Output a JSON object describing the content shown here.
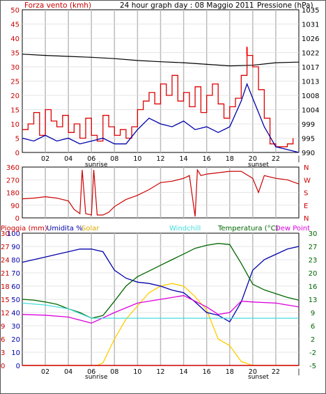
{
  "header": {
    "left_label": "Forza vento (kmh)",
    "center_title": "24 hour graph day : 08 Maggio 2011",
    "right_label": "Pressione (hPa)"
  },
  "colors": {
    "wind": "#dd0000",
    "gust": "#ff0000",
    "avg_wind": "#0000aa",
    "pressure": "#000000",
    "direction": "#cc0000",
    "humidity": "#0000aa",
    "solar": "#ffcc00",
    "windchill": "#44dddd",
    "temperature": "#006600",
    "dewpoint": "#dd00dd",
    "rain": "#cc0000",
    "grid": "#bbbbbb"
  },
  "x_axis": {
    "ticks": [
      "02",
      "04",
      "06",
      "08",
      "10",
      "12",
      "14",
      "16",
      "18",
      "20",
      "22",
      "|"
    ],
    "sunrise_label": "sunrise",
    "sunset_label": "sunset"
  },
  "chart_data": [
    {
      "type": "line",
      "panel": "wind-pressure",
      "left_axis_ticks": [
        "50",
        "45",
        "40",
        "35",
        "30",
        "25",
        "20",
        "15",
        "10",
        "5",
        "0"
      ],
      "right_axis_ticks": [
        "1035",
        "1031",
        "1026",
        "1022",
        "1017",
        "1013",
        "1008",
        "1004",
        "999",
        "995",
        "990"
      ],
      "ylim_left": [
        0,
        50
      ],
      "ylim_right": [
        990,
        1035
      ],
      "x_hours": [
        0,
        24
      ],
      "series": [
        {
          "name": "Forza vento (kmh)",
          "x": [
            0,
            0.5,
            1,
            1.5,
            2,
            2.5,
            3,
            3.5,
            4,
            4.5,
            5,
            5.5,
            6,
            6.5,
            7,
            7.5,
            8,
            8.5,
            9,
            9.5,
            10,
            10.5,
            11,
            11.5,
            12,
            12.5,
            13,
            13.5,
            14,
            14.5,
            15,
            15.5,
            16,
            16.5,
            17,
            17.5,
            18,
            18.5,
            19,
            19.5,
            20,
            20.5,
            21,
            21.5,
            22,
            22.5,
            23,
            23.5
          ],
          "values": [
            8,
            10,
            14,
            6,
            15,
            11,
            9,
            13,
            7,
            10,
            5,
            12,
            6,
            4,
            13,
            9,
            6,
            8,
            5,
            9,
            15,
            18,
            21,
            17,
            24,
            20,
            27,
            18,
            21,
            16,
            23,
            14,
            20,
            24,
            17,
            12,
            16,
            19,
            27,
            34,
            30,
            22,
            12,
            3,
            2,
            2,
            3,
            5
          ]
        },
        {
          "name": "Raffica",
          "x": [
            19.5
          ],
          "values": [
            37
          ]
        },
        {
          "name": "Vento medio",
          "x": [
            0,
            1,
            2,
            3,
            4,
            5,
            6,
            7,
            8,
            9,
            10,
            11,
            12,
            13,
            14,
            15,
            16,
            17,
            18,
            19,
            19.5,
            20,
            21,
            22,
            23,
            24
          ],
          "values": [
            5,
            4,
            6,
            4,
            5,
            3,
            4,
            5,
            3,
            3,
            8,
            12,
            10,
            9,
            11,
            8,
            9,
            7,
            9,
            18,
            24,
            19,
            9,
            2,
            1,
            0
          ]
        },
        {
          "name": "Pressione (hPa)",
          "x": [
            0,
            2,
            4,
            6,
            8,
            10,
            12,
            14,
            16,
            18,
            20,
            22,
            24
          ],
          "values": [
            1021,
            1020.6,
            1020.3,
            1020,
            1019.6,
            1019,
            1018.6,
            1018.3,
            1017.8,
            1017.3,
            1017.5,
            1018.3,
            1018.5
          ]
        }
      ]
    },
    {
      "type": "line",
      "panel": "wind-direction",
      "left_axis_ticks": [
        "360",
        "270",
        "180",
        "90",
        "0"
      ],
      "right_axis_ticks": [
        "N",
        "W",
        "S",
        "E",
        "N"
      ],
      "ylim": [
        0,
        360
      ],
      "x_hours": [
        0,
        24
      ],
      "series": [
        {
          "name": "Direzione",
          "x": [
            0,
            1,
            2,
            3,
            4,
            4.5,
            5,
            5.2,
            5.5,
            6,
            6.2,
            6.5,
            7,
            7.5,
            8,
            9,
            10,
            11,
            12,
            13,
            14,
            14.5,
            15,
            15.2,
            15.5,
            16,
            17,
            18,
            19,
            20,
            20.5,
            21,
            22,
            23,
            24
          ],
          "values": [
            135,
            140,
            150,
            140,
            120,
            60,
            30,
            340,
            30,
            20,
            340,
            20,
            20,
            40,
            80,
            130,
            160,
            200,
            250,
            260,
            280,
            300,
            10,
            340,
            300,
            310,
            320,
            330,
            330,
            280,
            180,
            300,
            280,
            270,
            240
          ]
        }
      ]
    },
    {
      "type": "line",
      "panel": "rain-humidity-temperature",
      "left_labels": [
        "Pioggia (mm)",
        "Umidita %",
        "Solar",
        "Windchill",
        "Temperatura (°C)",
        "Dew Point"
      ],
      "rain_axis_ticks": [
        "30",
        "27",
        "24",
        "21",
        "18",
        "15",
        "12",
        "9",
        "6",
        "3",
        "0"
      ],
      "humidity_axis_ticks": [
        "100",
        "90",
        "80",
        "70",
        "60",
        "50",
        "40",
        "30",
        "20",
        "10",
        "0"
      ],
      "temp_axis_ticks": [
        "30",
        "27",
        "23",
        "20",
        "16",
        "13",
        "9",
        "6",
        "2",
        "-2",
        "-5"
      ],
      "ylim_humidity": [
        0,
        100
      ],
      "ylim_temperature": [
        -5,
        30
      ],
      "x_hours": [
        0,
        24
      ],
      "series": [
        {
          "name": "Umidita %",
          "x": [
            0,
            1,
            2,
            3,
            4,
            5,
            6,
            7,
            8,
            9,
            10,
            11,
            12,
            13,
            14,
            15,
            16,
            17,
            18,
            19,
            20,
            21,
            22,
            23,
            24
          ],
          "values": [
            78,
            80,
            82,
            84,
            86,
            88,
            88,
            86,
            72,
            66,
            63,
            62,
            60,
            57,
            55,
            48,
            40,
            38,
            33,
            48,
            72,
            80,
            84,
            88,
            90
          ]
        },
        {
          "name": "Solar",
          "x": [
            0,
            6,
            6.5,
            7,
            8,
            9,
            10,
            11,
            12,
            13,
            14,
            15,
            16,
            17,
            18,
            19,
            20,
            24
          ],
          "values": [
            0,
            0,
            0,
            2,
            20,
            35,
            45,
            55,
            60,
            62,
            60,
            52,
            42,
            20,
            15,
            3,
            0,
            0
          ]
        },
        {
          "name": "Windchill",
          "x": [
            0,
            2,
            4,
            6,
            7,
            8,
            24
          ],
          "values": [
            11.5,
            11,
            10,
            7.5,
            7.5,
            7.5,
            7.5
          ]
        },
        {
          "name": "Temperatura (°C)",
          "x": [
            0,
            1,
            2,
            3,
            4,
            5,
            6,
            7,
            8,
            9,
            10,
            11,
            12,
            13,
            14,
            15,
            16,
            17,
            18,
            19,
            20,
            21,
            22,
            23,
            24
          ],
          "values": [
            12.5,
            12.3,
            11.8,
            11.2,
            10,
            9,
            7.5,
            8.2,
            12,
            16,
            18.5,
            20,
            21.5,
            23,
            24.5,
            26,
            26.8,
            27.3,
            27,
            22,
            16.5,
            15,
            14,
            13,
            12.3
          ]
        },
        {
          "name": "Dew Point",
          "x": [
            0,
            2,
            4,
            6,
            8,
            10,
            12,
            14,
            16,
            17,
            18,
            19,
            20,
            22,
            24
          ],
          "values": [
            8.5,
            8.3,
            7.8,
            6.2,
            9,
            11.5,
            12.5,
            13.5,
            10.5,
            8.5,
            9,
            12,
            11.8,
            11.5,
            10.5
          ]
        },
        {
          "name": "Pioggia (mm)",
          "x": [
            0,
            24
          ],
          "values": [
            0,
            0
          ]
        }
      ]
    }
  ]
}
